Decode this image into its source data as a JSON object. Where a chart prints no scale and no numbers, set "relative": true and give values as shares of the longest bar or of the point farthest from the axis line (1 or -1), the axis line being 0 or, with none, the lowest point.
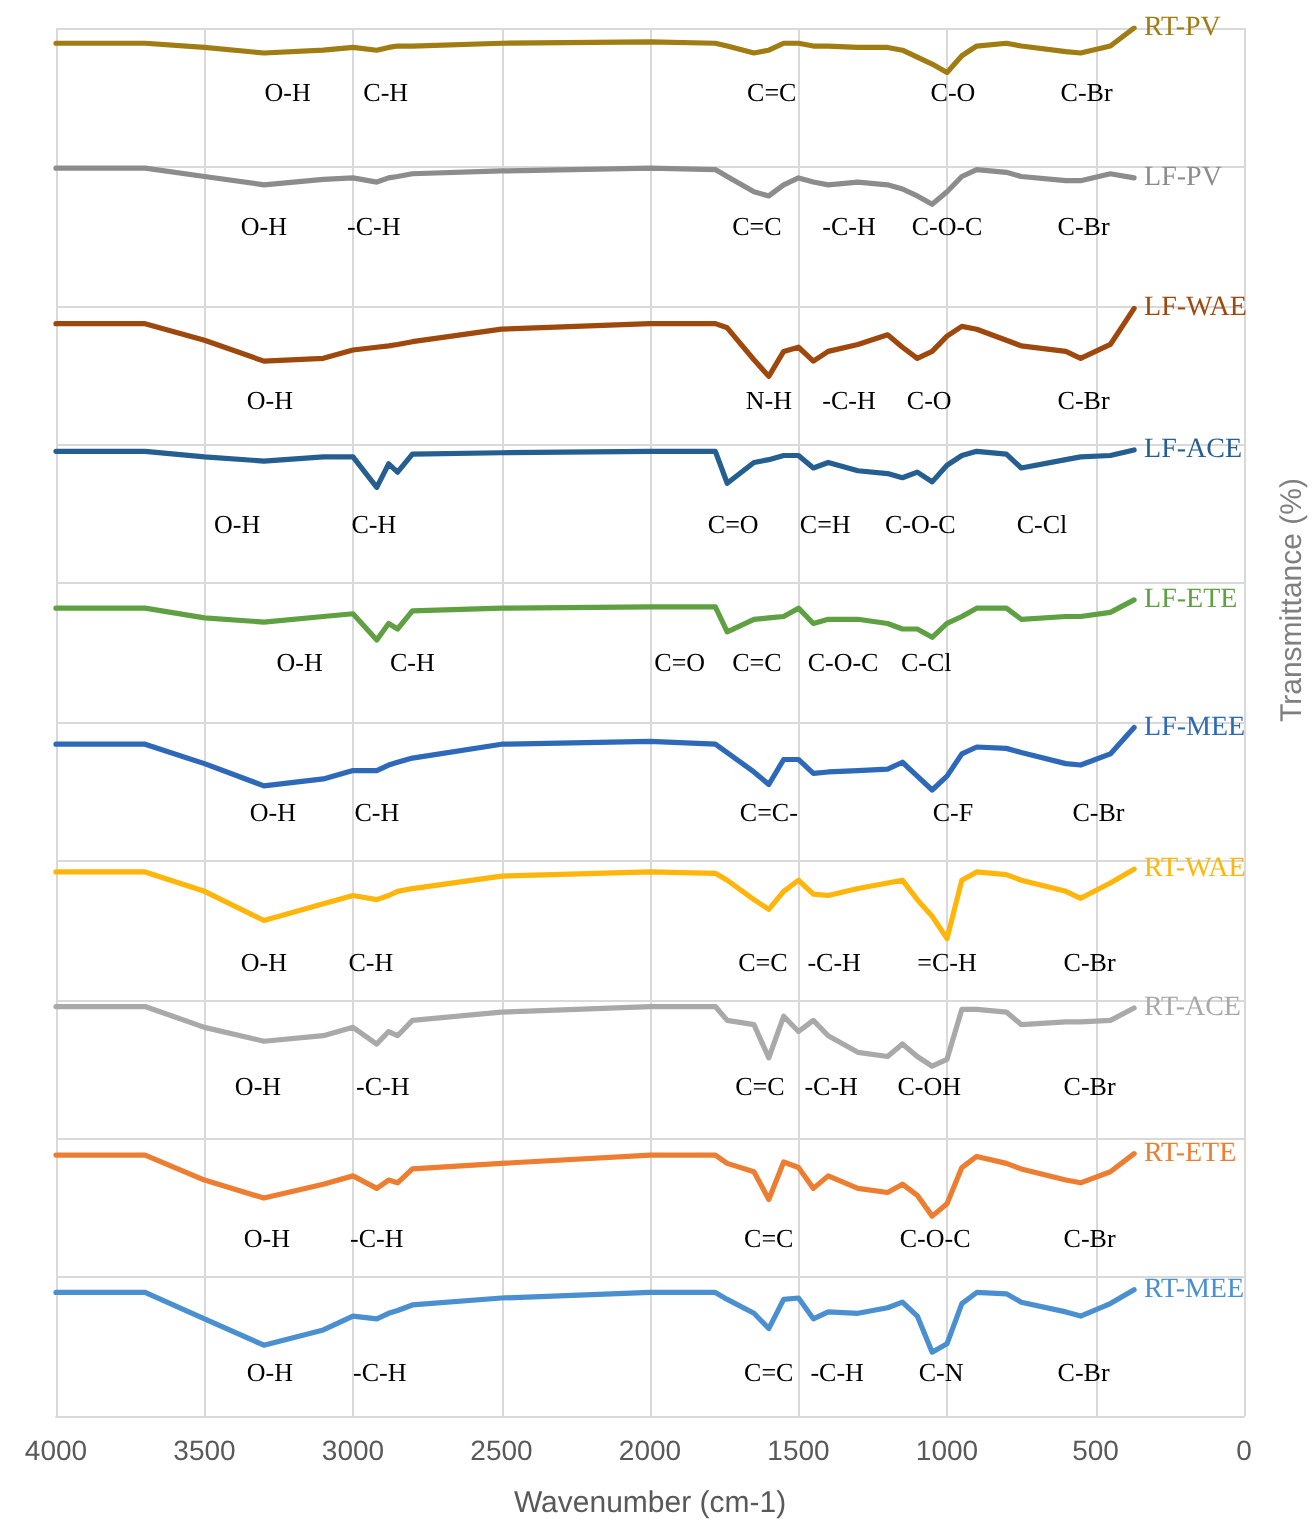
{
  "chart_data": {
    "type": "line",
    "relative": true,
    "xlabel": "Wavenumber (cm-1)",
    "ylabel": "Transmittance (%)",
    "xlim": [
      4000,
      0
    ],
    "xticks": [
      4000,
      3500,
      3000,
      2500,
      2000,
      1500,
      1000,
      500,
      0
    ],
    "grid": true,
    "marker": "none",
    "x": [
      4000,
      3700,
      3500,
      3300,
      3100,
      3000,
      2920,
      2880,
      2850,
      2800,
      2500,
      2000,
      1780,
      1740,
      1650,
      1600,
      1550,
      1500,
      1450,
      1400,
      1300,
      1200,
      1150,
      1100,
      1050,
      1000,
      950,
      900,
      800,
      750,
      600,
      550,
      450,
      370
    ],
    "series": [
      {
        "name": "RT-PV",
        "color": "#a07c12",
        "values": [
          0.989,
          0.989,
          0.986,
          0.982,
          0.984,
          0.986,
          0.984,
          0.986,
          0.987,
          0.987,
          0.989,
          0.99,
          0.989,
          0.987,
          0.982,
          0.984,
          0.989,
          0.989,
          0.987,
          0.987,
          0.986,
          0.986,
          0.984,
          0.979,
          0.974,
          0.968,
          0.98,
          0.987,
          0.989,
          0.987,
          0.983,
          0.982,
          0.987,
          1
        ]
      },
      {
        "name": "LF-PV",
        "color": "#8c8c8c",
        "values": [
          0.899,
          0.899,
          0.893,
          0.887,
          0.891,
          0.892,
          0.889,
          0.892,
          0.893,
          0.895,
          0.897,
          0.899,
          0.898,
          0.893,
          0.882,
          0.879,
          0.887,
          0.892,
          0.889,
          0.887,
          0.889,
          0.887,
          0.884,
          0.879,
          0.873,
          0.882,
          0.893,
          0.898,
          0.896,
          0.893,
          0.89,
          0.89,
          0.895,
          0.892
        ]
      },
      {
        "name": "LF-WAE",
        "color": "#9e480e",
        "values": [
          0.787,
          0.787,
          0.775,
          0.76,
          0.762,
          0.768,
          0.77,
          0.771,
          0.772,
          0.774,
          0.783,
          0.787,
          0.787,
          0.784,
          0.761,
          0.749,
          0.767,
          0.77,
          0.76,
          0.767,
          0.772,
          0.779,
          0.77,
          0.762,
          0.767,
          0.778,
          0.785,
          0.783,
          0.775,
          0.771,
          0.767,
          0.762,
          0.772,
          0.798
        ]
      },
      {
        "name": "LF-ACE",
        "color": "#255e91",
        "values": [
          0.695,
          0.695,
          0.691,
          0.688,
          0.691,
          0.691,
          0.669,
          0.686,
          0.68,
          0.693,
          0.694,
          0.695,
          0.695,
          0.672,
          0.687,
          0.689,
          0.692,
          0.692,
          0.683,
          0.687,
          0.681,
          0.679,
          0.676,
          0.68,
          0.673,
          0.685,
          0.692,
          0.695,
          0.693,
          0.683,
          0.689,
          0.691,
          0.692,
          0.696
        ]
      },
      {
        "name": "LF-ETE",
        "color": "#5fa043",
        "values": [
          0.582,
          0.582,
          0.575,
          0.572,
          0.576,
          0.578,
          0.559,
          0.571,
          0.567,
          0.58,
          0.582,
          0.583,
          0.583,
          0.565,
          0.574,
          0.575,
          0.576,
          0.582,
          0.571,
          0.574,
          0.574,
          0.571,
          0.567,
          0.567,
          0.561,
          0.571,
          0.576,
          0.582,
          0.582,
          0.574,
          0.576,
          0.576,
          0.579,
          0.588
        ]
      },
      {
        "name": "LF-MEE",
        "color": "#2e68b8",
        "values": [
          0.484,
          0.484,
          0.47,
          0.454,
          0.459,
          0.465,
          0.465,
          0.469,
          0.471,
          0.474,
          0.484,
          0.486,
          0.484,
          0.478,
          0.464,
          0.455,
          0.473,
          0.473,
          0.463,
          0.464,
          0.465,
          0.466,
          0.471,
          0.461,
          0.451,
          0.461,
          0.477,
          0.482,
          0.481,
          0.478,
          0.47,
          0.469,
          0.477,
          0.496
        ]
      },
      {
        "name": "RT-WAE",
        "color": "#ffb50a",
        "values": [
          0.392,
          0.392,
          0.378,
          0.357,
          0.369,
          0.375,
          0.372,
          0.375,
          0.378,
          0.38,
          0.389,
          0.392,
          0.391,
          0.386,
          0.372,
          0.365,
          0.378,
          0.386,
          0.376,
          0.375,
          0.38,
          0.384,
          0.386,
          0.372,
          0.36,
          0.344,
          0.386,
          0.392,
          0.39,
          0.386,
          0.378,
          0.373,
          0.384,
          0.394
        ]
      },
      {
        "name": "RT-ACE",
        "color": "#a9a9a9",
        "values": [
          0.295,
          0.295,
          0.28,
          0.27,
          0.274,
          0.28,
          0.268,
          0.277,
          0.274,
          0.285,
          0.291,
          0.295,
          0.295,
          0.285,
          0.282,
          0.258,
          0.288,
          0.277,
          0.285,
          0.274,
          0.262,
          0.259,
          0.268,
          0.259,
          0.252,
          0.257,
          0.293,
          0.293,
          0.291,
          0.282,
          0.284,
          0.284,
          0.285,
          0.294
        ]
      },
      {
        "name": "RT-ETE",
        "color": "#ed7d31",
        "values": [
          0.188,
          0.188,
          0.17,
          0.157,
          0.167,
          0.173,
          0.164,
          0.17,
          0.168,
          0.178,
          0.182,
          0.188,
          0.188,
          0.182,
          0.176,
          0.156,
          0.183,
          0.179,
          0.164,
          0.173,
          0.164,
          0.161,
          0.167,
          0.159,
          0.144,
          0.153,
          0.179,
          0.187,
          0.182,
          0.178,
          0.17,
          0.168,
          0.176,
          0.189
        ]
      },
      {
        "name": "RT-MEE",
        "color": "#4a8fd0",
        "values": [
          0.089,
          0.089,
          0.07,
          0.051,
          0.062,
          0.072,
          0.07,
          0.074,
          0.076,
          0.08,
          0.085,
          0.089,
          0.089,
          0.084,
          0.074,
          0.063,
          0.084,
          0.085,
          0.07,
          0.075,
          0.074,
          0.078,
          0.082,
          0.072,
          0.046,
          0.052,
          0.081,
          0.089,
          0.088,
          0.082,
          0.075,
          0.072,
          0.081,
          0.091
        ]
      }
    ],
    "annotations": [
      "O-H",
      "C-H",
      "C=C",
      "C-O",
      "C-Br",
      "O-H",
      "-C-H",
      "C=C",
      "-C-H",
      "C-O-C",
      "C-Br",
      "O-H",
      "N-H",
      "-C-H",
      "C-O",
      "C-Br",
      "O-H",
      "C-H",
      "C=O",
      "C=H",
      "C-O-C",
      "C-Cl",
      "O-H",
      "C-H",
      "C=O",
      "C=C",
      "C-O-C",
      "C-Cl",
      "O-H",
      "C-H",
      "C=C-",
      "C-F",
      "C-Br",
      "O-H",
      "C-H",
      "C=C",
      "-C-H",
      "=C-H",
      "C-Br",
      "O-H",
      "-C-H",
      "C=C",
      "-C-H",
      "C-OH",
      "C-Br",
      "O-H",
      "-C-H",
      "C=C",
      "C-O-C",
      "C-Br",
      "O-H",
      "-C-H",
      "C=C",
      "-C-H",
      "C-N",
      "C-Br"
    ]
  }
}
